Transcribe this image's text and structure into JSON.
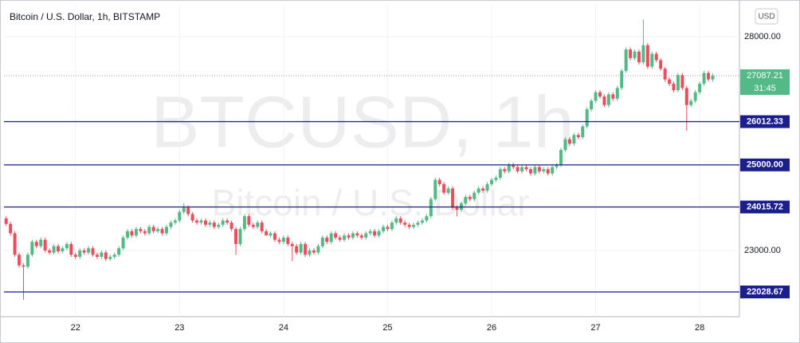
{
  "chart_data": {
    "type": "candlestick",
    "title": "Bitcoin / U.S. Dollar, 1h, BITSTAMP",
    "watermark": "BTCUSD, 1h",
    "watermark_subtitle": "Bitcoin / U.S. Dollar",
    "currency_button": "USD",
    "last_price": 27087.21,
    "countdown": "31:45",
    "up_color": "#53b987",
    "down_color": "#eb4d5c",
    "level_color": "#1a1f8c",
    "grid": true,
    "ylim": [
      21450,
      28765
    ],
    "yticks": [
      {
        "value": 23000,
        "label": "23000.00"
      },
      {
        "value": 28000,
        "label": "28000.00"
      }
    ],
    "levels": [
      26012.33,
      {
        "value": 25000,
        "label": "25000.00"
      },
      24015.72,
      22028.67
    ],
    "categories": [
      null,
      null,
      null,
      null,
      null,
      null,
      null,
      null,
      null,
      null,
      null,
      null,
      null,
      null,
      null,
      null,
      "22",
      null,
      null,
      null,
      null,
      null,
      null,
      null,
      null,
      null,
      null,
      null,
      null,
      null,
      null,
      null,
      null,
      null,
      null,
      null,
      null,
      null,
      null,
      null,
      "23",
      null,
      null,
      null,
      null,
      null,
      null,
      null,
      null,
      null,
      null,
      null,
      null,
      null,
      null,
      null,
      null,
      null,
      null,
      null,
      null,
      null,
      null,
      null,
      "24",
      null,
      null,
      null,
      null,
      null,
      null,
      null,
      null,
      null,
      null,
      null,
      null,
      null,
      null,
      null,
      null,
      null,
      null,
      null,
      null,
      null,
      null,
      null,
      "25",
      null,
      null,
      null,
      null,
      null,
      null,
      null,
      null,
      null,
      null,
      null,
      null,
      null,
      null,
      null,
      null,
      null,
      null,
      null,
      null,
      null,
      null,
      null,
      "26",
      null,
      null,
      null,
      null,
      null,
      null,
      null,
      null,
      null,
      null,
      null,
      null,
      null,
      null,
      null,
      null,
      null,
      null,
      null,
      null,
      null,
      null,
      null,
      "27",
      null,
      null,
      null,
      null,
      null,
      null,
      null,
      null,
      null,
      null,
      null,
      null,
      null,
      null,
      null,
      null,
      null,
      null,
      null,
      null,
      null,
      null,
      null,
      "28",
      null,
      null,
      null
    ],
    "open": [
      23750,
      23620,
      23400,
      22900,
      22650,
      22620,
      22900,
      23200,
      23100,
      23250,
      23000,
      22950,
      23100,
      22980,
      23050,
      23150,
      22900,
      22850,
      23000,
      22950,
      23050,
      22900,
      22850,
      22950,
      22800,
      22850,
      22900,
      23050,
      23300,
      23450,
      23350,
      23500,
      23450,
      23400,
      23550,
      23450,
      23500,
      23400,
      23550,
      23650,
      23700,
      23900,
      24000,
      23850,
      23700,
      23650,
      23700,
      23600,
      23650,
      23550,
      23600,
      23700,
      23650,
      23500,
      23150,
      23500,
      23800,
      23600,
      23550,
      23650,
      23450,
      23350,
      23400,
      23250,
      23200,
      23300,
      23150,
      23100,
      22950,
      23150,
      22900,
      23000,
      22950,
      23100,
      23300,
      23200,
      23400,
      23300,
      23250,
      23350,
      23300,
      23400,
      23350,
      23300,
      23400,
      23450,
      23350,
      23450,
      23550,
      23500,
      23650,
      23750,
      23650,
      23600,
      23550,
      23600,
      23650,
      23700,
      23800,
      24200,
      24650,
      24550,
      24350,
      24450,
      24000,
      23950,
      24100,
      24250,
      24200,
      24350,
      24450,
      24400,
      24550,
      24650,
      24700,
      24900,
      24850,
      25000,
      24950,
      24850,
      24950,
      24900,
      24800,
      24950,
      24850,
      24900,
      24800,
      24950,
      25000,
      25350,
      25600,
      25500,
      25700,
      25650,
      25900,
      26300,
      26500,
      26700,
      26600,
      26400,
      26650,
      26550,
      26800,
      27200,
      27700,
      27500,
      27650,
      27400,
      27800,
      27300,
      27600,
      27450,
      27250,
      27000,
      26900,
      26750,
      27100,
      26800,
      26400,
      26500,
      26700,
      26900,
      27150,
      27000
    ],
    "high": [
      23800,
      23670,
      23450,
      22950,
      22700,
      22950,
      23250,
      23250,
      23300,
      23300,
      23050,
      23150,
      23150,
      23100,
      23200,
      23200,
      22950,
      23050,
      23050,
      23100,
      23100,
      22950,
      23000,
      23000,
      22900,
      22950,
      23100,
      23350,
      23500,
      23500,
      23550,
      23550,
      23500,
      23600,
      23600,
      23550,
      23550,
      23600,
      23700,
      23750,
      23950,
      24100,
      24050,
      23900,
      23750,
      23750,
      23750,
      23700,
      23700,
      23650,
      23750,
      23750,
      23700,
      23550,
      23550,
      23850,
      23850,
      23650,
      23700,
      23700,
      23500,
      23450,
      23450,
      23300,
      23350,
      23350,
      23200,
      23150,
      23200,
      23200,
      23050,
      23050,
      23150,
      23350,
      23350,
      23450,
      23450,
      23350,
      23400,
      23400,
      23450,
      23450,
      23400,
      23450,
      23500,
      23500,
      23500,
      23600,
      23600,
      23700,
      23800,
      23800,
      23700,
      23650,
      23650,
      23700,
      23750,
      23850,
      24250,
      24700,
      24700,
      24600,
      24500,
      24500,
      24050,
      24150,
      24300,
      24300,
      24400,
      24500,
      24500,
      24600,
      24700,
      24750,
      24950,
      24950,
      25050,
      25050,
      25000,
      25000,
      25000,
      24950,
      25000,
      25000,
      24950,
      24950,
      25000,
      25050,
      25400,
      25650,
      25650,
      25750,
      25750,
      25950,
      26350,
      26550,
      26750,
      26750,
      26650,
      26700,
      26700,
      26850,
      27250,
      27750,
      27750,
      27700,
      27700,
      28400,
      27850,
      27650,
      27650,
      27500,
      27300,
      27050,
      26950,
      27150,
      27150,
      26850,
      26550,
      26750,
      26950,
      27200,
      27200,
      27140
    ],
    "low": [
      23570,
      23350,
      22850,
      22600,
      21850,
      22570,
      22850,
      23050,
      23050,
      22950,
      22900,
      22900,
      22930,
      22930,
      23000,
      22850,
      22800,
      22800,
      22900,
      22900,
      22850,
      22800,
      22800,
      22750,
      22750,
      22800,
      22850,
      23000,
      23250,
      23300,
      23300,
      23400,
      23350,
      23350,
      23400,
      23400,
      23350,
      23350,
      23500,
      23600,
      23650,
      23850,
      23800,
      23650,
      23600,
      23600,
      23550,
      23550,
      23500,
      23500,
      23550,
      23600,
      23450,
      22900,
      23100,
      23450,
      23550,
      23500,
      23500,
      23400,
      23400,
      23300,
      23200,
      23150,
      23150,
      23100,
      22750,
      22900,
      22900,
      22850,
      22850,
      22900,
      22900,
      23050,
      23150,
      23150,
      23250,
      23200,
      23200,
      23250,
      23250,
      23300,
      23250,
      23250,
      23350,
      23300,
      23300,
      23400,
      23450,
      23450,
      23600,
      23600,
      23550,
      23500,
      23500,
      23550,
      23600,
      23650,
      23750,
      24150,
      24500,
      24300,
      24300,
      23950,
      23800,
      23900,
      24050,
      24150,
      24150,
      24300,
      24350,
      24350,
      24500,
      24600,
      24650,
      24800,
      24800,
      24900,
      24800,
      24800,
      24850,
      24750,
      24750,
      24800,
      24800,
      24750,
      24750,
      24900,
      24950,
      25300,
      25450,
      25450,
      25600,
      25600,
      25850,
      26250,
      26450,
      26550,
      26350,
      26350,
      26500,
      26500,
      26750,
      27150,
      27450,
      27450,
      27350,
      27350,
      27250,
      27250,
      27400,
      27200,
      26950,
      26850,
      26700,
      26700,
      26750,
      25800,
      26350,
      26450,
      26650,
      26850,
      26950,
      26950
    ],
    "close": [
      23620,
      23400,
      22900,
      22650,
      22620,
      22900,
      23200,
      23100,
      23250,
      23000,
      22950,
      23100,
      22980,
      23050,
      23150,
      22900,
      22850,
      23000,
      22950,
      23050,
      22900,
      22850,
      22950,
      22800,
      22850,
      22900,
      23050,
      23300,
      23450,
      23350,
      23500,
      23450,
      23400,
      23550,
      23450,
      23500,
      23400,
      23550,
      23650,
      23700,
      23900,
      24000,
      23850,
      23700,
      23650,
      23700,
      23600,
      23650,
      23550,
      23600,
      23700,
      23650,
      23500,
      23150,
      23500,
      23800,
      23600,
      23550,
      23650,
      23450,
      23350,
      23400,
      23250,
      23200,
      23300,
      23150,
      23100,
      22950,
      23150,
      22900,
      23000,
      22950,
      23100,
      23300,
      23200,
      23400,
      23300,
      23250,
      23350,
      23300,
      23400,
      23350,
      23300,
      23400,
      23450,
      23350,
      23450,
      23550,
      23500,
      23650,
      23750,
      23650,
      23600,
      23550,
      23600,
      23650,
      23700,
      23800,
      24200,
      24650,
      24550,
      24350,
      24450,
      24000,
      23950,
      24100,
      24250,
      24200,
      24350,
      24450,
      24400,
      24550,
      24650,
      24700,
      24900,
      24850,
      25000,
      24950,
      24850,
      24950,
      24900,
      24800,
      24950,
      24850,
      24900,
      24800,
      24950,
      25000,
      25350,
      25600,
      25500,
      25700,
      25650,
      25900,
      26300,
      26500,
      26700,
      26600,
      26400,
      26650,
      26550,
      26800,
      27200,
      27700,
      27500,
      27650,
      27400,
      27800,
      27300,
      27600,
      27450,
      27250,
      27000,
      26900,
      26750,
      27100,
      26800,
      26400,
      26500,
      26700,
      26900,
      27150,
      27000,
      27087.21
    ]
  }
}
